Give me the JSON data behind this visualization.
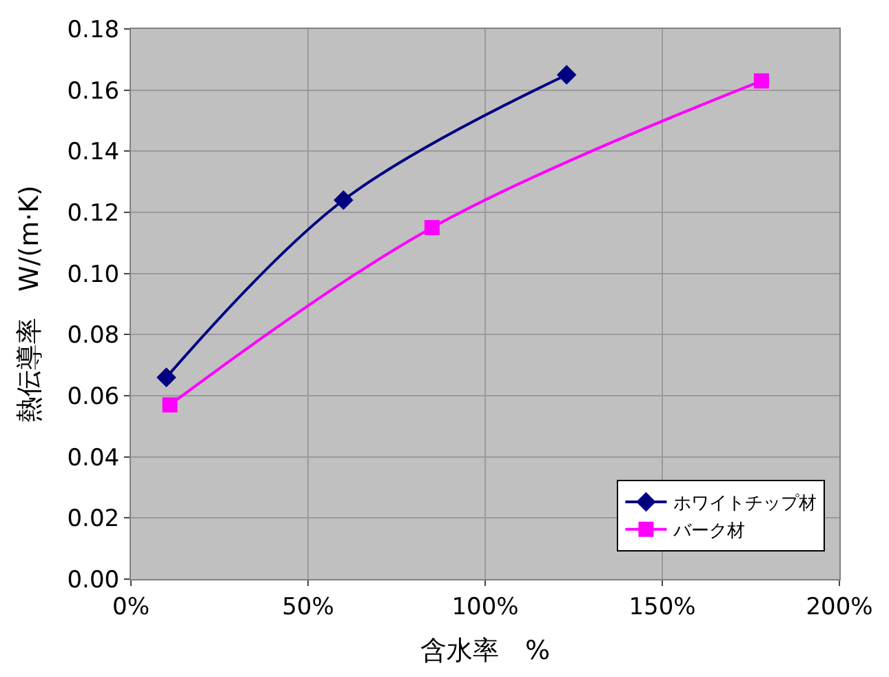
{
  "chart_data": {
    "type": "line",
    "xlabel": "含水率　%",
    "ylabel": "熱伝導率　W/(m·K)",
    "xlim": [
      0,
      200
    ],
    "xticks": [
      {
        "value": 0,
        "label": "0%"
      },
      {
        "value": 50,
        "label": "50%"
      },
      {
        "value": 100,
        "label": "100%"
      },
      {
        "value": 150,
        "label": "150%"
      },
      {
        "value": 200,
        "label": "200%"
      }
    ],
    "ylim": [
      0,
      0.18
    ],
    "yticks": [
      {
        "value": 0,
        "label": "0.00"
      },
      {
        "value": 0.02,
        "label": "0.02"
      },
      {
        "value": 0.04,
        "label": "0.04"
      },
      {
        "value": 0.06,
        "label": "0.06"
      },
      {
        "value": 0.08,
        "label": "0.08"
      },
      {
        "value": 0.1,
        "label": "0.10"
      },
      {
        "value": 0.12,
        "label": "0.12"
      },
      {
        "value": 0.14,
        "label": "0.14"
      },
      {
        "value": 0.16,
        "label": "0.16"
      },
      {
        "value": 0.18,
        "label": "0.18"
      }
    ],
    "grid": true,
    "legend": "bottom right",
    "series": [
      {
        "name": "ホワイトチップ材",
        "color": "#000080",
        "marker": "diamond",
        "x": [
          10,
          60,
          123
        ],
        "values": [
          0.066,
          0.124,
          0.165
        ]
      },
      {
        "name": "バーク材",
        "color": "#ff00ff",
        "marker": "square",
        "x": [
          11,
          85,
          178
        ],
        "values": [
          0.057,
          0.115,
          0.163
        ]
      }
    ]
  }
}
